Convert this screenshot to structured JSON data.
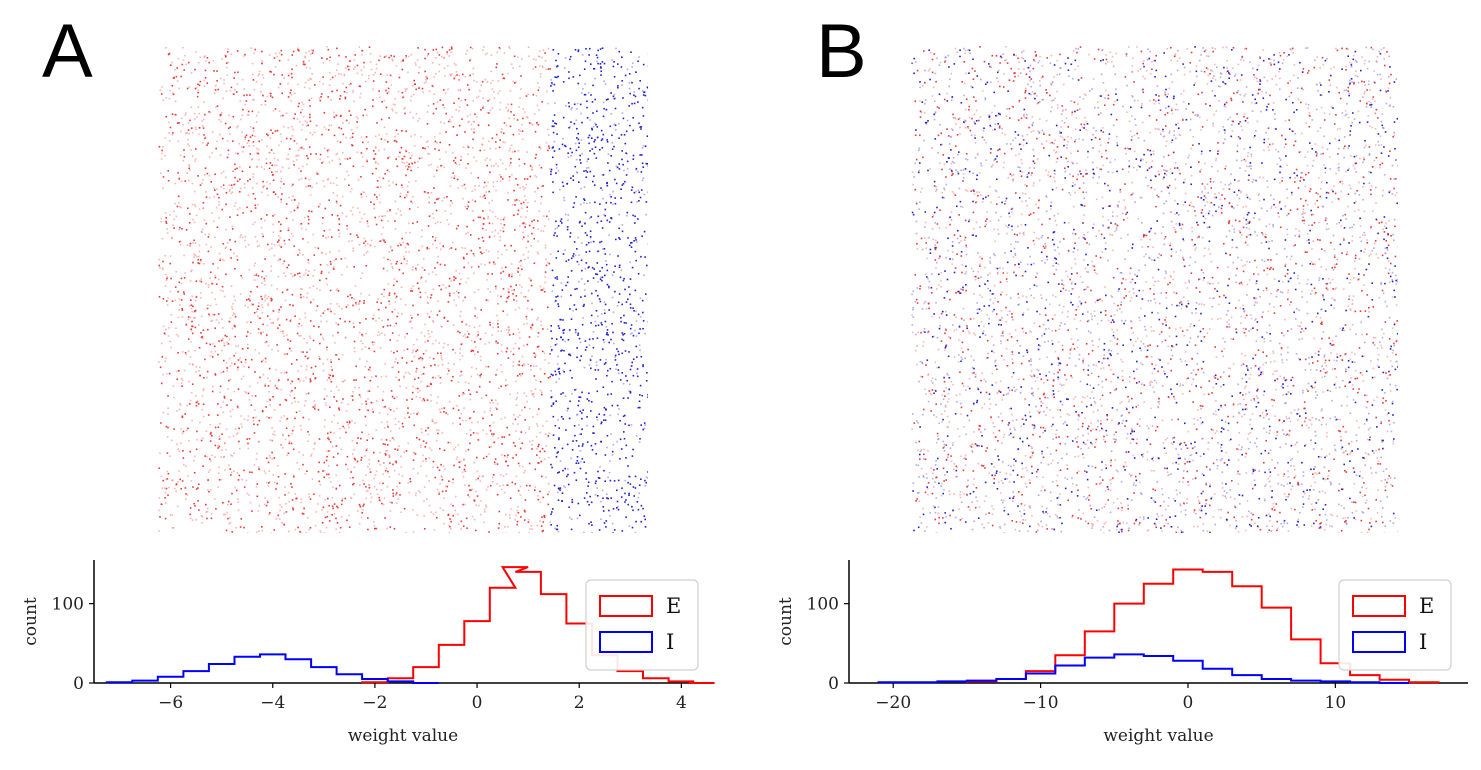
{
  "panels": [
    {
      "label": "A",
      "matrix": {
        "description_free": true,
        "excitatory_color": "#e8302e",
        "inhibitory_color": "#1515d0",
        "inhibitory_fraction": 0.2,
        "layout": "segregated"
      },
      "histogram": {
        "xlabel": "weight value",
        "ylabel": "count",
        "xlim": [
          -7.5,
          4.6
        ],
        "ylim": [
          0,
          155
        ],
        "xticks": [
          -6,
          -4,
          -2,
          0,
          2,
          4
        ],
        "xtick_labels": [
          "−6",
          "−4",
          "−2",
          "0",
          "2",
          "4"
        ],
        "yticks": [
          0,
          100
        ],
        "ytick_labels": [
          "0",
          "100"
        ],
        "legend": [
          {
            "label": "E",
            "color": "#ff0000"
          },
          {
            "label": "I",
            "color": "#0000ff"
          }
        ]
      }
    },
    {
      "label": "B",
      "matrix": {
        "description_free": true,
        "excitatory_color": "#e8302e",
        "inhibitory_color": "#1515d0",
        "inhibitory_fraction": 0.45,
        "layout": "mixed"
      },
      "histogram": {
        "xlabel": "weight value",
        "ylabel": "count",
        "xlim": [
          -23,
          19
        ],
        "ylim": [
          0,
          155
        ],
        "xticks": [
          -20,
          -10,
          0,
          10
        ],
        "xtick_labels": [
          "−20",
          "−10",
          "0",
          "10"
        ],
        "yticks": [
          0,
          100
        ],
        "ytick_labels": [
          "0",
          "100"
        ],
        "legend": [
          {
            "label": "E",
            "color": "#ff0000"
          },
          {
            "label": "I",
            "color": "#0000ff"
          }
        ]
      }
    }
  ],
  "chart_data": [
    {
      "type": "heatmap",
      "title": "A",
      "note": "Sparse weight matrix; excitatory (red) columns left, inhibitory (blue) columns right"
    },
    {
      "type": "histogram",
      "title": "A",
      "xlabel": "weight value",
      "ylabel": "count",
      "xlim": [
        -7.5,
        4.6
      ],
      "ylim": [
        0,
        155
      ],
      "series": [
        {
          "name": "E",
          "color": "#ff0000",
          "x": [
            -2.0,
            -1.5,
            -1.0,
            -0.5,
            0.0,
            0.5,
            0.75,
            1.0,
            1.5,
            2.0,
            2.5,
            3.0,
            3.5,
            4.0,
            4.4
          ],
          "values": [
            1,
            6,
            20,
            48,
            78,
            120,
            146,
            140,
            112,
            75,
            35,
            15,
            6,
            2,
            0
          ]
        },
        {
          "name": "I",
          "color": "#0000ff",
          "x": [
            -7.0,
            -6.5,
            -6.0,
            -5.5,
            -5.0,
            -4.5,
            -4.0,
            -3.5,
            -3.0,
            -2.5,
            -2.0,
            -1.5,
            -1.0
          ],
          "values": [
            1,
            3,
            8,
            15,
            24,
            33,
            36,
            30,
            20,
            11,
            5,
            2,
            0
          ]
        }
      ],
      "legend": [
        "E",
        "I"
      ]
    },
    {
      "type": "heatmap",
      "title": "B",
      "note": "Sparse weight matrix; excitatory (red) and inhibitory (blue) entries intermixed"
    },
    {
      "type": "histogram",
      "title": "B",
      "xlabel": "weight value",
      "ylabel": "count",
      "xlim": [
        -23,
        19
      ],
      "ylim": [
        0,
        155
      ],
      "series": [
        {
          "name": "E",
          "color": "#ff0000",
          "x": [
            -14,
            -12,
            -10,
            -8,
            -6,
            -4,
            -2,
            0,
            2,
            4,
            6,
            8,
            10,
            12,
            14,
            16
          ],
          "values": [
            2,
            5,
            15,
            35,
            65,
            100,
            125,
            143,
            140,
            122,
            95,
            55,
            25,
            10,
            4,
            1
          ]
        },
        {
          "name": "I",
          "color": "#0000ff",
          "x": [
            -20,
            -18,
            -16,
            -14,
            -12,
            -10,
            -8,
            -6,
            -4,
            -2,
            0,
            2,
            4,
            6,
            8,
            10,
            12,
            14
          ],
          "values": [
            1,
            1,
            2,
            3,
            5,
            12,
            22,
            32,
            36,
            34,
            28,
            18,
            10,
            5,
            3,
            2,
            1,
            0
          ]
        }
      ],
      "legend": [
        "E",
        "I"
      ]
    }
  ]
}
